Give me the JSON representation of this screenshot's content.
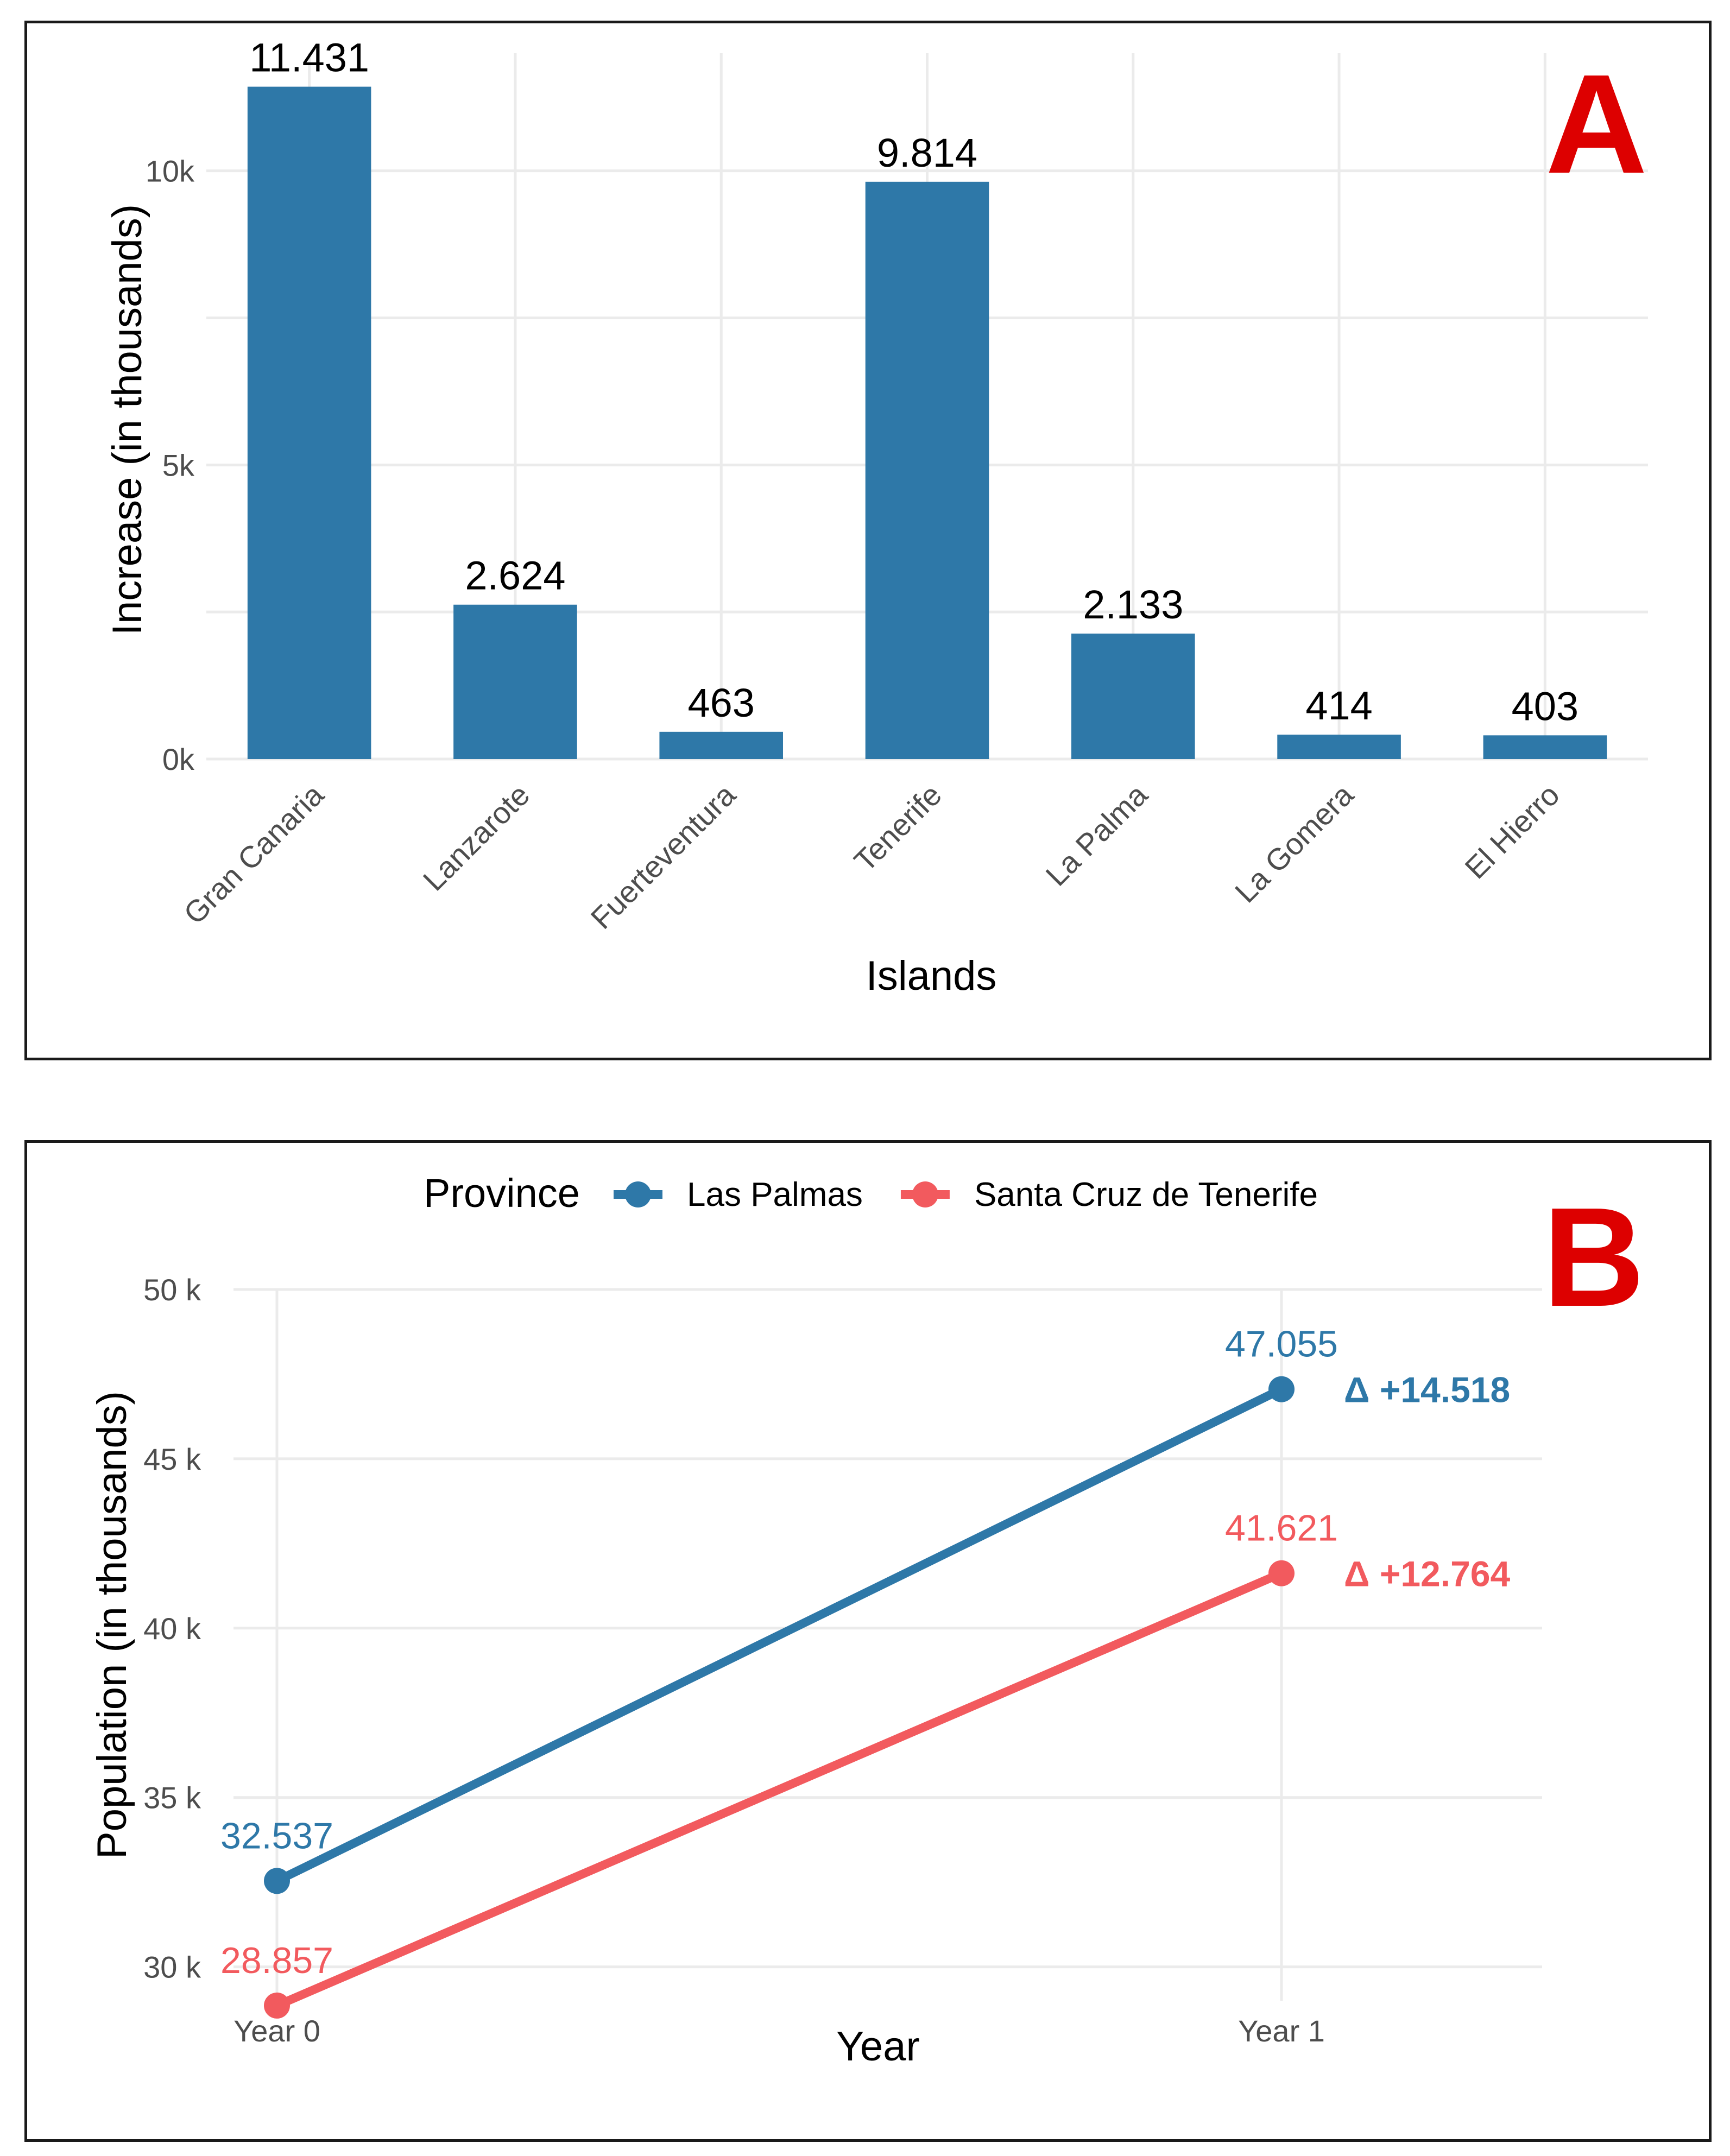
{
  "chart_data": [
    {
      "type": "bar",
      "panel_label": "A",
      "title": "",
      "xlabel": "Islands",
      "ylabel": "Increase (in thousands)",
      "categories": [
        "Gran Canaria",
        "Lanzarote",
        "Fuerteventura",
        "Tenerife",
        "La Palma",
        "La Gomera",
        "El Hierro"
      ],
      "values": [
        11431,
        2624,
        463,
        9814,
        2133,
        414,
        403
      ],
      "value_labels": [
        "11.431",
        "2.624",
        "463",
        "9.814",
        "2.133",
        "414",
        "403"
      ],
      "ylim": [
        0,
        12000
      ],
      "yticks": [
        0,
        5000,
        10000
      ],
      "ytick_labels": [
        "0k",
        "5k",
        "10k"
      ],
      "bar_color": "#2e78a8",
      "panel_label_color": "#dd0000",
      "grid": true
    },
    {
      "type": "line",
      "panel_label": "B",
      "title": "",
      "xlabel": "Year",
      "ylabel": "Population (in thousands)",
      "categories": [
        "Year 0",
        "Year 1"
      ],
      "ylim": [
        29000,
        50000
      ],
      "yticks": [
        30000,
        35000,
        40000,
        45000,
        50000
      ],
      "ytick_labels": [
        "30 k",
        "35 k",
        "40 k",
        "45 k",
        "50 k"
      ],
      "legend": {
        "title": "Province",
        "placement": "top"
      },
      "series": [
        {
          "name": "Las Palmas",
          "values": [
            32537,
            47055
          ],
          "value_labels": [
            "32.537",
            "47.055"
          ],
          "delta_label": "Δ +14.518",
          "color": "#2e78a8"
        },
        {
          "name": "Santa Cruz de Tenerife",
          "values": [
            28857,
            41621
          ],
          "value_labels": [
            "28.857",
            "41.621"
          ],
          "delta_label": "Δ +12.764",
          "color": "#f25a5e"
        }
      ],
      "panel_label_color": "#dd0000",
      "grid": true
    }
  ]
}
